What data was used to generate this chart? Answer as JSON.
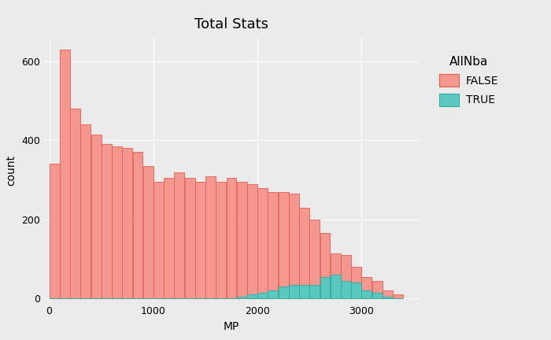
{
  "title": "Total Stats",
  "xlabel": "MP",
  "ylabel": "count",
  "legend_title": "AllNba",
  "legend_labels": [
    "FALSE",
    "TRUE"
  ],
  "false_color": "#F4978E",
  "true_color": "#5BC8C0",
  "false_edge_color": "#E06050",
  "true_edge_color": "#2AADA5",
  "bg_color": "#EBEBEB",
  "grid_color": "#FFFFFF",
  "false_counts": [
    340,
    630,
    480,
    440,
    415,
    390,
    385,
    380,
    370,
    335,
    295,
    305,
    320,
    305,
    295,
    310,
    295,
    305,
    295,
    290,
    280,
    270,
    270,
    265,
    230,
    200,
    165,
    115,
    110,
    80,
    55,
    45,
    20,
    10
  ],
  "true_counts": [
    0,
    0,
    0,
    0,
    0,
    0,
    0,
    0,
    0,
    0,
    0,
    0,
    0,
    0,
    0,
    0,
    0,
    0,
    5,
    10,
    15,
    20,
    30,
    35,
    35,
    35,
    55,
    60,
    45,
    40,
    20,
    15,
    5,
    0
  ],
  "bin_width": 100,
  "n_bins": 34,
  "x_start": 0,
  "xlim": [
    -50,
    3550
  ],
  "ylim": [
    -10,
    660
  ],
  "yticks": [
    0,
    200,
    400,
    600
  ],
  "xticks": [
    0,
    1000,
    2000,
    3000
  ],
  "title_fontsize": 13,
  "axis_label_fontsize": 10,
  "tick_fontsize": 9,
  "legend_fontsize": 10,
  "legend_title_fontsize": 11
}
